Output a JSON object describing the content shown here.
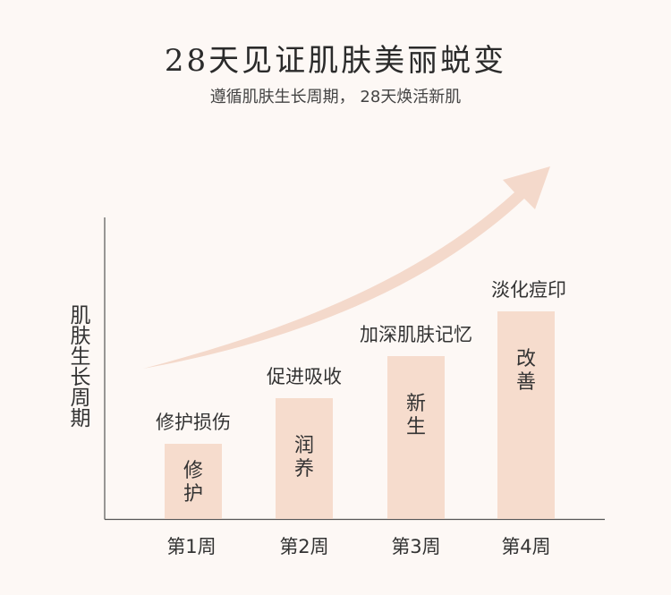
{
  "title": "28天见证肌肤美丽蜕变",
  "subtitle": "遵循肌肤生长周期， 28天焕活新肌",
  "colors": {
    "background": "#fdf8f5",
    "bar": "#f6dccd",
    "arrow": "#f4d9cb",
    "axis": "#555555",
    "text": "#333333"
  },
  "chart_data": {
    "type": "bar",
    "ylabel": "肌肤生长周期",
    "xlabel": "",
    "categories": [
      "第1周",
      "第2周",
      "第3周",
      "第4周"
    ],
    "values": [
      1,
      2,
      3,
      4
    ],
    "bar_labels": [
      "修护",
      "润养",
      "新生",
      "改善"
    ],
    "annotations": [
      "修护损伤",
      "促进吸收",
      "加深肌肤记忆",
      "淡化痘印"
    ],
    "grid": false,
    "trend_arrow": true
  }
}
